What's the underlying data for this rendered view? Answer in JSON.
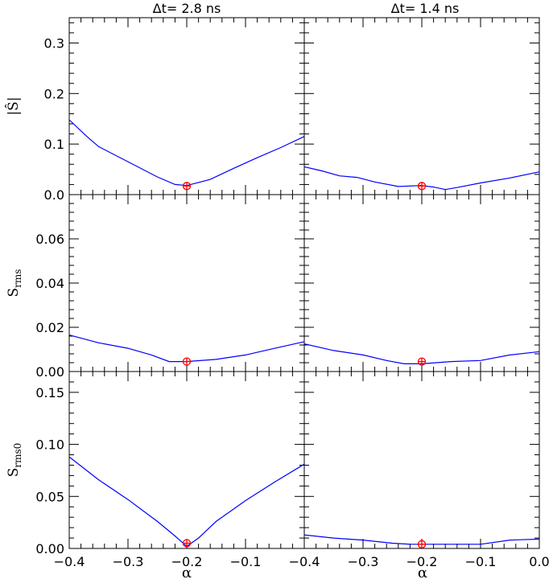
{
  "chart_data": [
    {
      "type": "line",
      "panel": "row1-col1",
      "title": "Δt= 2.8 ns",
      "ylabel": "|Ŝ|",
      "xlabel": "",
      "xlim": [
        -0.4,
        0.0
      ],
      "ylim": [
        0.0,
        0.35
      ],
      "yticks": [
        0.0,
        0.1,
        0.2,
        0.3
      ],
      "ytick_labels": [
        "0.0",
        "0.1",
        "0.2",
        "0.3"
      ],
      "series": [
        {
          "x": [
            -0.4,
            -0.37,
            -0.35,
            -0.3,
            -0.25,
            -0.22,
            -0.2,
            -0.18,
            -0.16,
            -0.12,
            -0.08,
            -0.04,
            0.0
          ],
          "y": [
            0.148,
            0.115,
            0.095,
            0.065,
            0.035,
            0.02,
            0.018,
            0.024,
            0.03,
            0.052,
            0.073,
            0.093,
            0.115
          ]
        }
      ],
      "marker": {
        "x": -0.2,
        "y": 0.017
      }
    },
    {
      "type": "line",
      "panel": "row1-col2",
      "title": "Δt= 1.4 ns",
      "xlim": [
        -0.4,
        0.0
      ],
      "ylim": [
        0.0,
        0.35
      ],
      "series": [
        {
          "x": [
            -0.4,
            -0.37,
            -0.34,
            -0.31,
            -0.28,
            -0.24,
            -0.2,
            -0.18,
            -0.16,
            -0.14,
            -0.1,
            -0.05,
            0.0
          ],
          "y": [
            0.055,
            0.047,
            0.037,
            0.034,
            0.025,
            0.016,
            0.018,
            0.015,
            0.01,
            0.014,
            0.023,
            0.033,
            0.045
          ]
        }
      ],
      "marker": {
        "x": -0.2,
        "y": 0.017
      }
    },
    {
      "type": "line",
      "panel": "row2-col1",
      "ylabel": "S_rms",
      "xlim": [
        -0.4,
        0.0
      ],
      "ylim": [
        0.0,
        0.08
      ],
      "yticks": [
        0.0,
        0.02,
        0.04,
        0.06
      ],
      "ytick_labels": [
        "0.00",
        "0.02",
        "0.04",
        "0.06"
      ],
      "series": [
        {
          "x": [
            -0.4,
            -0.35,
            -0.3,
            -0.26,
            -0.23,
            -0.2,
            -0.15,
            -0.1,
            -0.05,
            0.0
          ],
          "y": [
            0.0165,
            0.013,
            0.0105,
            0.0075,
            0.0045,
            0.0045,
            0.0055,
            0.0075,
            0.0105,
            0.0135
          ]
        }
      ],
      "marker": {
        "x": -0.2,
        "y": 0.0045
      }
    },
    {
      "type": "line",
      "panel": "row2-col2",
      "xlim": [
        -0.4,
        0.0
      ],
      "ylim": [
        0.0,
        0.08
      ],
      "series": [
        {
          "x": [
            -0.4,
            -0.35,
            -0.3,
            -0.26,
            -0.23,
            -0.2,
            -0.15,
            -0.1,
            -0.05,
            0.0
          ],
          "y": [
            0.0125,
            0.0095,
            0.0075,
            0.005,
            0.0035,
            0.0035,
            0.0045,
            0.005,
            0.0075,
            0.009
          ]
        }
      ],
      "marker": {
        "x": -0.2,
        "y": 0.0045
      }
    },
    {
      "type": "line",
      "panel": "row3-col1",
      "ylabel": "S_rms0",
      "xlabel": "α",
      "xlim": [
        -0.4,
        0.0
      ],
      "ylim": [
        0.0,
        0.17
      ],
      "yticks": [
        0.0,
        0.05,
        0.1,
        0.15
      ],
      "ytick_labels": [
        "0.00",
        "0.05",
        "0.10",
        "0.15"
      ],
      "xticks": [
        -0.4,
        -0.3,
        -0.2,
        -0.1
      ],
      "xtick_labels": [
        "−0.4",
        "−0.3",
        "−0.2",
        "−0.1"
      ],
      "series": [
        {
          "x": [
            -0.4,
            -0.35,
            -0.3,
            -0.25,
            -0.22,
            -0.2,
            -0.18,
            -0.15,
            -0.1,
            -0.05,
            0.0
          ],
          "y": [
            0.088,
            0.066,
            0.047,
            0.026,
            0.012,
            0.002,
            0.01,
            0.026,
            0.046,
            0.064,
            0.081
          ]
        }
      ],
      "marker": {
        "x": -0.2,
        "y": 0.005
      }
    },
    {
      "type": "line",
      "panel": "row3-col2",
      "xlabel": "α",
      "xlim": [
        -0.4,
        0.0
      ],
      "ylim": [
        0.0,
        0.17
      ],
      "xticks": [
        -0.4,
        -0.3,
        -0.2,
        -0.1,
        0.0
      ],
      "xtick_labels": [
        "−0.4",
        "−0.3",
        "−0.2",
        "−0.1",
        "0.0"
      ],
      "series": [
        {
          "x": [
            -0.4,
            -0.35,
            -0.3,
            -0.25,
            -0.22,
            -0.2,
            -0.15,
            -0.1,
            -0.05,
            0.0
          ],
          "y": [
            0.013,
            0.01,
            0.008,
            0.005,
            0.004,
            0.004,
            0.004,
            0.004,
            0.008,
            0.009
          ]
        }
      ],
      "marker": {
        "x": -0.2,
        "y": 0.004
      }
    }
  ],
  "colors": {
    "curve": "#0000ff",
    "marker": "#ff0000",
    "axes": "#000000"
  }
}
